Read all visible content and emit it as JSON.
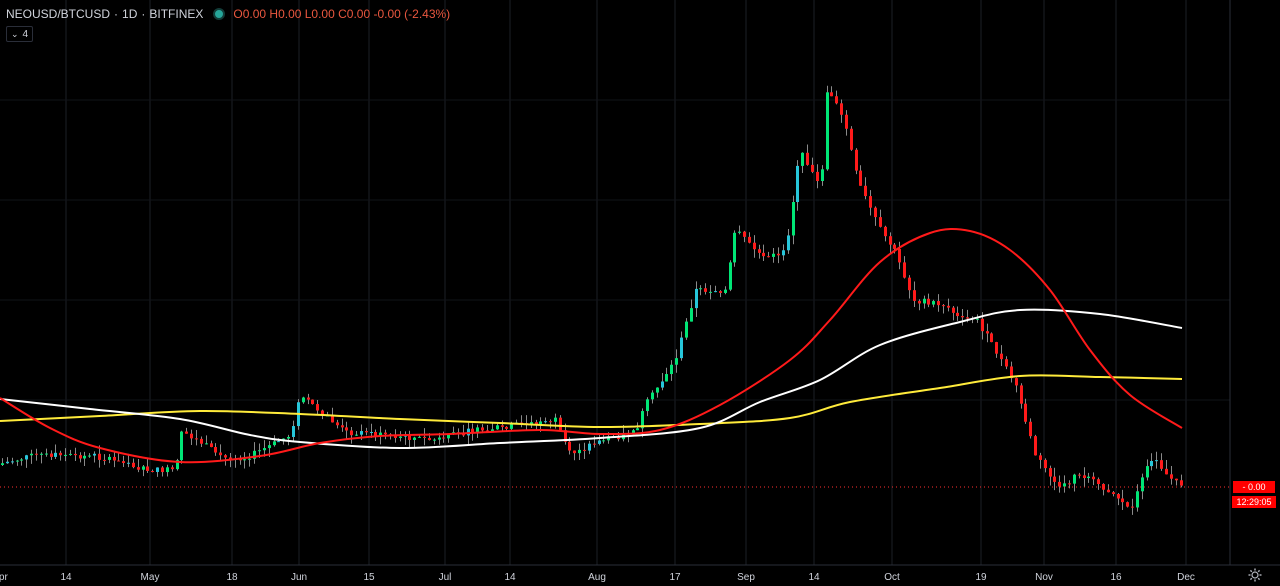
{
  "header": {
    "symbol": "NEOUSD/BTCUSD",
    "interval": "1D",
    "exchange": "BITFINEX",
    "ohlc": "O0.00 H0.00 L0.00 C0.00 -0.00 (-2.43%)",
    "status_color": "#26a69a"
  },
  "indicator_toggle": {
    "chevron": "⌄",
    "count": "4"
  },
  "price_label": "0.00",
  "countdown": "12:29:05",
  "colors": {
    "background": "#000000",
    "up": "#00e676",
    "down": "#ff1a1a",
    "up_alt": "#26c6da",
    "grid": "#1c1f26",
    "ma_red": "#ff1a1a",
    "ma_white": "#ffffff",
    "ma_yellow": "#ffeb3b",
    "axis_text": "#d1d4dc"
  },
  "chart_data": {
    "type": "candlestick",
    "grid": true,
    "y_tick_labels": [],
    "x_tick_labels": [
      "Apr",
      "14",
      "May",
      "18",
      "Jun",
      "15",
      "Jul",
      "14",
      "Aug",
      "17",
      "Sep",
      "14",
      "Oct",
      "19",
      "Nov",
      "16",
      "Dec"
    ],
    "series": [
      {
        "type": "moving-average",
        "color": "#ff1a1a"
      },
      {
        "type": "moving-average",
        "color": "#ffffff"
      },
      {
        "type": "moving-average",
        "color": "#ffeb3b"
      }
    ],
    "last_price": "0.00",
    "last_change": "-2.43%"
  }
}
